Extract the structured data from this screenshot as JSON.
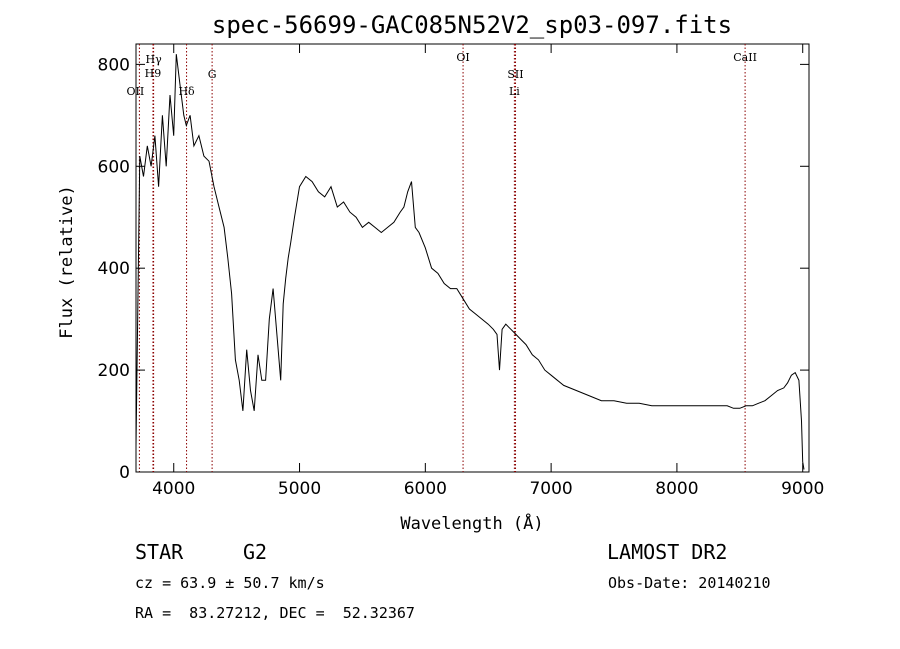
{
  "chart_data": {
    "type": "line",
    "title": "spec-56699-GAC085N52V2_sp03-097.fits",
    "xlabel": "Wavelength (Å)",
    "ylabel": "Flux (relative)",
    "xlim": [
      3700,
      9050
    ],
    "ylim": [
      0,
      840
    ],
    "xticks": [
      4000,
      5000,
      6000,
      7000,
      8000,
      9000
    ],
    "yticks": [
      0,
      200,
      400,
      600,
      800
    ],
    "grid": false,
    "series": [
      {
        "x": [
          3700,
          3730,
          3760,
          3790,
          3820,
          3850,
          3880,
          3910,
          3940,
          3970,
          4000,
          4020,
          4050,
          4080,
          4100,
          4130,
          4160,
          4200,
          4240,
          4280,
          4320,
          4360,
          4400,
          4430,
          4460,
          4490,
          4520,
          4550,
          4580,
          4610,
          4640,
          4670,
          4700,
          4730,
          4760,
          4790,
          4820,
          4850,
          4870,
          4890,
          4910,
          4930,
          4960,
          5000,
          5050,
          5100,
          5150,
          5200,
          5250,
          5300,
          5350,
          5400,
          5450,
          5500,
          5550,
          5600,
          5650,
          5700,
          5750,
          5800,
          5830,
          5860,
          5890,
          5920,
          5950,
          6000,
          6050,
          6100,
          6150,
          6200,
          6250,
          6300,
          6350,
          6400,
          6450,
          6500,
          6540,
          6570,
          6590,
          6610,
          6640,
          6680,
          6720,
          6760,
          6800,
          6850,
          6900,
          6950,
          7000,
          7050,
          7100,
          7200,
          7300,
          7400,
          7500,
          7600,
          7700,
          7800,
          7900,
          8000,
          8100,
          8200,
          8300,
          8400,
          8450,
          8500,
          8550,
          8600,
          8650,
          8700,
          8750,
          8800,
          8850,
          8880,
          8910,
          8940,
          8970,
          8990,
          9000,
          9010
        ],
        "values": [
          50,
          620,
          580,
          640,
          600,
          660,
          560,
          700,
          600,
          740,
          660,
          820,
          760,
          700,
          680,
          700,
          640,
          660,
          620,
          610,
          560,
          520,
          480,
          420,
          350,
          220,
          180,
          120,
          240,
          160,
          120,
          230,
          180,
          180,
          300,
          360,
          270,
          180,
          330,
          380,
          420,
          450,
          500,
          560,
          580,
          570,
          550,
          540,
          560,
          520,
          530,
          510,
          500,
          480,
          490,
          480,
          470,
          480,
          490,
          510,
          520,
          550,
          570,
          480,
          470,
          440,
          400,
          390,
          370,
          360,
          360,
          340,
          320,
          310,
          300,
          290,
          280,
          270,
          200,
          280,
          290,
          280,
          270,
          260,
          250,
          230,
          220,
          200,
          190,
          180,
          170,
          160,
          150,
          140,
          140,
          135,
          135,
          130,
          130,
          130,
          130,
          130,
          130,
          130,
          125,
          125,
          130,
          130,
          135,
          140,
          150,
          160,
          165,
          175,
          190,
          195,
          180,
          100,
          20,
          5
        ]
      }
    ],
    "line_markers": [
      {
        "label": "OII",
        "x": 3727
      },
      {
        "label": "H9",
        "x": 3835
      },
      {
        "label": "Hγ",
        "x": 3840
      },
      {
        "label": "Hδ",
        "x": 4102
      },
      {
        "label": "G",
        "x": 4305
      },
      {
        "label": "OI",
        "x": 6300
      },
      {
        "label": "SII",
        "x": 6717
      },
      {
        "label": "Li",
        "x": 6708
      },
      {
        "label": "CaII",
        "x": 8542
      }
    ]
  },
  "info": {
    "object_type": "STAR",
    "subclass": "G2",
    "survey": "LAMOST DR2",
    "redshift": "cz = 63.9 ± 50.7 km/s",
    "obs_date": "Obs-Date: 20140210",
    "coords": "RA =  83.27212, DEC =  52.32367"
  }
}
